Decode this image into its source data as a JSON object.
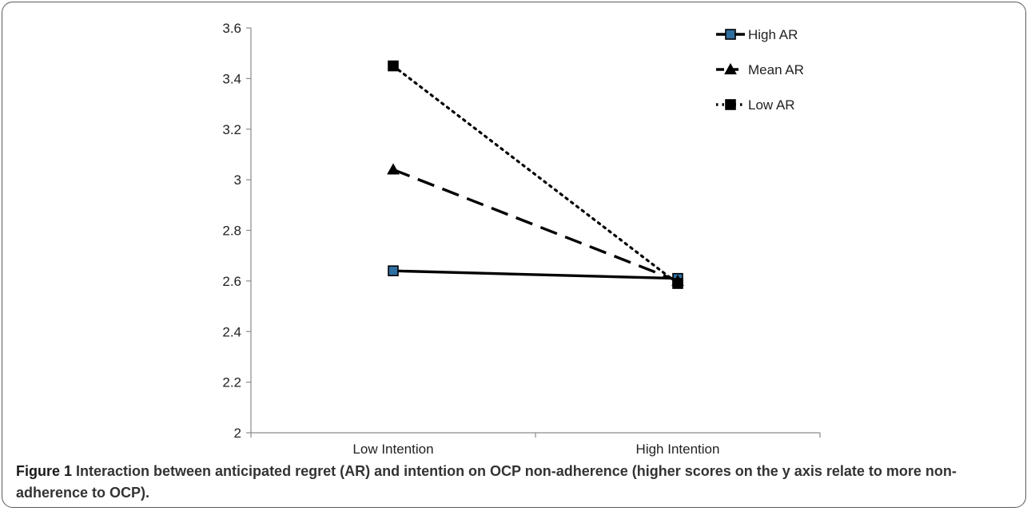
{
  "chart_data": {
    "type": "line",
    "categories": [
      "Low Intention",
      "High Intention"
    ],
    "series": [
      {
        "name": "High AR",
        "values": [
          2.64,
          2.61
        ],
        "line_style": "solid",
        "marker": "square",
        "marker_fill": "#2f6f9f",
        "color": "#000000"
      },
      {
        "name": "Mean AR",
        "values": [
          3.04,
          2.6
        ],
        "line_style": "dashed",
        "marker": "triangle",
        "marker_fill": "#000000",
        "color": "#000000"
      },
      {
        "name": "Low AR",
        "values": [
          3.45,
          2.59
        ],
        "line_style": "dotted",
        "marker": "square",
        "marker_fill": "#000000",
        "color": "#000000"
      }
    ],
    "ylim": [
      2,
      3.6
    ],
    "yticks": [
      "2",
      "2.2",
      "2.4",
      "2.6",
      "2.8",
      "3",
      "3.2",
      "3.4",
      "3.6"
    ],
    "grid": false,
    "legend_position": "top-right"
  },
  "caption": {
    "label": "Figure 1",
    "text": "Interaction between anticipated regret (AR) and intention on OCP non-adherence (higher scores on the y axis relate to more non-adherence to OCP)."
  }
}
